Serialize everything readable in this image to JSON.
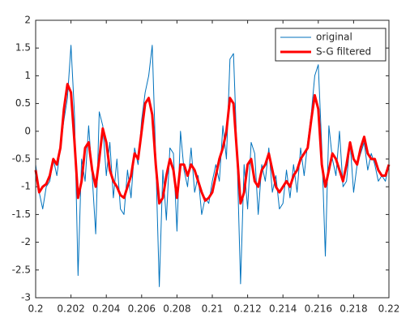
{
  "chart_data": {
    "type": "line",
    "x": [
      0.2,
      0.2002,
      0.2004,
      0.2006,
      0.2008,
      0.201,
      0.2012,
      0.2014,
      0.2016,
      0.2018,
      0.202,
      0.2022,
      0.2024,
      0.2026,
      0.2028,
      0.203,
      0.2032,
      0.2034,
      0.2036,
      0.2038,
      0.204,
      0.2042,
      0.2044,
      0.2046,
      0.2048,
      0.205,
      0.2052,
      0.2054,
      0.2056,
      0.2058,
      0.206,
      0.2062,
      0.2064,
      0.2066,
      0.2068,
      0.207,
      0.2072,
      0.2074,
      0.2076,
      0.2078,
      0.208,
      0.2082,
      0.2084,
      0.2086,
      0.2088,
      0.209,
      0.2092,
      0.2094,
      0.2096,
      0.2098,
      0.21,
      0.2102,
      0.2104,
      0.2106,
      0.2108,
      0.211,
      0.2112,
      0.2114,
      0.2116,
      0.2118,
      0.212,
      0.2122,
      0.2124,
      0.2126,
      0.2128,
      0.213,
      0.2132,
      0.2134,
      0.2136,
      0.2138,
      0.214,
      0.2142,
      0.2144,
      0.2146,
      0.2148,
      0.215,
      0.2152,
      0.2154,
      0.2156,
      0.2158,
      0.216,
      0.2162,
      0.2164,
      0.2166,
      0.2168,
      0.217,
      0.2172,
      0.2174,
      0.2176,
      0.2178,
      0.218,
      0.2182,
      0.2184,
      0.2186,
      0.2188,
      0.219,
      0.2192,
      0.2194,
      0.2196,
      0.2198,
      0.22
    ],
    "series": [
      {
        "name": "original",
        "color": "#0072bd",
        "width": 1,
        "values": [
          -0.6,
          -1.1,
          -1.4,
          -1.0,
          -0.9,
          -0.5,
          -0.8,
          -0.3,
          0.2,
          0.6,
          1.55,
          0.3,
          -2.6,
          -0.5,
          -0.9,
          0.1,
          -0.8,
          -1.85,
          0.35,
          0.1,
          -0.8,
          -0.2,
          -1.2,
          -0.5,
          -1.4,
          -1.5,
          -0.7,
          -1.2,
          -0.3,
          -0.6,
          0.2,
          0.7,
          1.0,
          1.55,
          -0.5,
          -2.8,
          -0.7,
          -1.6,
          -0.3,
          -0.4,
          -1.8,
          0.0,
          -0.7,
          -1.0,
          -0.3,
          -1.1,
          -0.8,
          -1.5,
          -1.2,
          -1.3,
          -0.9,
          -0.6,
          -0.9,
          0.1,
          -0.5,
          1.3,
          1.4,
          -0.4,
          -2.75,
          -0.6,
          -1.4,
          -0.2,
          -0.4,
          -1.5,
          -0.6,
          -0.9,
          -0.3,
          -1.1,
          -0.8,
          -1.4,
          -1.3,
          -0.7,
          -1.2,
          -0.6,
          -1.1,
          -0.3,
          -0.8,
          -0.2,
          0.3,
          1.0,
          1.2,
          -0.3,
          -2.25,
          0.1,
          -0.5,
          -0.8,
          0.0,
          -1.0,
          -0.9,
          -0.2,
          -1.1,
          -0.6,
          -0.4,
          -0.2,
          -0.7,
          -0.4,
          -0.6,
          -0.9,
          -0.8,
          -0.9,
          -0.6
        ]
      },
      {
        "name": "S-G filtered",
        "color": "#ff0000",
        "width": 3,
        "values": [
          -0.7,
          -1.1,
          -1.0,
          -0.95,
          -0.8,
          -0.5,
          -0.6,
          -0.3,
          0.4,
          0.85,
          0.7,
          -0.2,
          -1.2,
          -0.9,
          -0.3,
          -0.2,
          -0.7,
          -1.0,
          -0.5,
          0.05,
          -0.2,
          -0.7,
          -0.9,
          -1.0,
          -1.15,
          -1.2,
          -1.0,
          -0.8,
          -0.4,
          -0.5,
          0.0,
          0.5,
          0.6,
          0.3,
          -0.6,
          -1.3,
          -1.2,
          -0.8,
          -0.5,
          -0.7,
          -1.2,
          -0.6,
          -0.6,
          -0.8,
          -0.6,
          -0.7,
          -0.9,
          -1.1,
          -1.25,
          -1.2,
          -1.1,
          -0.8,
          -0.5,
          -0.3,
          0.0,
          0.6,
          0.5,
          -0.4,
          -1.3,
          -1.1,
          -0.6,
          -0.5,
          -0.9,
          -1.0,
          -0.7,
          -0.6,
          -0.4,
          -0.7,
          -1.0,
          -1.1,
          -1.0,
          -0.9,
          -1.0,
          -0.8,
          -0.7,
          -0.5,
          -0.4,
          -0.3,
          0.2,
          0.65,
          0.4,
          -0.6,
          -1.0,
          -0.7,
          -0.4,
          -0.5,
          -0.7,
          -0.9,
          -0.6,
          -0.2,
          -0.5,
          -0.6,
          -0.3,
          -0.1,
          -0.4,
          -0.5,
          -0.5,
          -0.7,
          -0.8,
          -0.8,
          -0.6
        ]
      }
    ],
    "xlim": [
      0.2,
      0.22
    ],
    "xticks": [
      0.2,
      0.202,
      0.204,
      0.206,
      0.208,
      0.21,
      0.212,
      0.214,
      0.216,
      0.218,
      0.22
    ],
    "ylim": [
      -3,
      2
    ],
    "yticks": [
      -3,
      -2.5,
      -2,
      -1.5,
      -1,
      -0.5,
      0,
      0.5,
      1,
      1.5,
      2
    ],
    "grid": false,
    "legend": "northeast"
  }
}
